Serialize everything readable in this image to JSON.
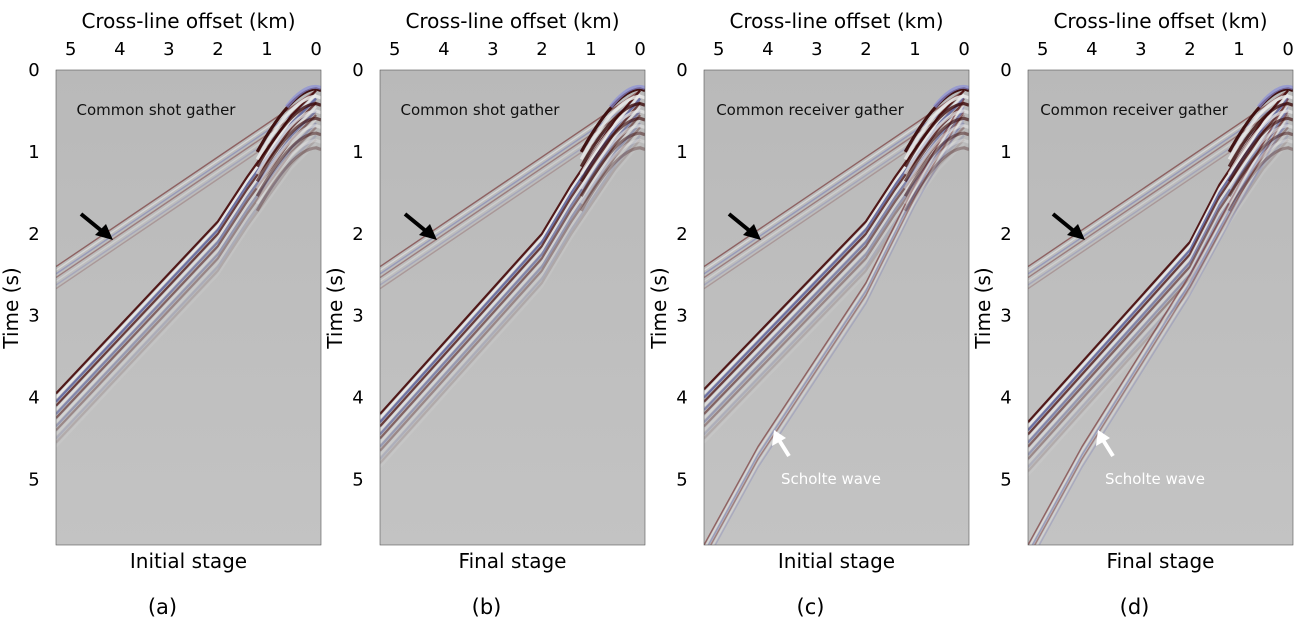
{
  "figure": {
    "panels": [
      {
        "id": "a",
        "panel_label": "(a)",
        "stage": "Initial stage",
        "gather": "Common shot gather",
        "scholte_label": "",
        "has_scholte": false
      },
      {
        "id": "b",
        "panel_label": "(b)",
        "stage": "Final stage",
        "gather": "Common shot gather",
        "scholte_label": "",
        "has_scholte": false
      },
      {
        "id": "c",
        "panel_label": "(c)",
        "stage": "Initial stage",
        "gather": "Common receiver gather",
        "scholte_label": "Scholte wave",
        "has_scholte": true
      },
      {
        "id": "d",
        "panel_label": "(d)",
        "stage": "Final stage",
        "gather": "Common receiver gather",
        "scholte_label": "Scholte wave",
        "has_scholte": true
      }
    ]
  },
  "chart_data": [
    {
      "type": "heatmap",
      "title": "",
      "xlabel": "Cross-line offset (km)",
      "ylabel": "Time (s)",
      "x_ticks": [
        5,
        4,
        3,
        2,
        1,
        0
      ],
      "y_ticks": [
        0,
        1,
        2,
        3,
        4,
        5
      ],
      "xlim": [
        5.3,
        -0.1
      ],
      "ylim": [
        0,
        5.8
      ],
      "x_reversed": true,
      "y_reversed": true,
      "annotations": [
        "Common shot gather"
      ],
      "xlabel_bottom": "Initial stage",
      "panel_label": "(a)",
      "events": [
        {
          "kind": "direct",
          "x": [
            5.3,
            0.0
          ],
          "t": [
            2.4,
            0.25
          ]
        },
        {
          "kind": "refraction",
          "x": [
            5.3,
            2.0,
            1.4,
            0.5,
            0.0
          ],
          "t": [
            3.95,
            1.85,
            1.3,
            0.55,
            0.25
          ]
        }
      ]
    },
    {
      "type": "heatmap",
      "title": "",
      "xlabel": "Cross-line offset (km)",
      "ylabel": "Time (s)",
      "x_ticks": [
        5,
        4,
        3,
        2,
        1,
        0
      ],
      "y_ticks": [
        0,
        1,
        2,
        3,
        4,
        5
      ],
      "xlim": [
        5.3,
        -0.1
      ],
      "ylim": [
        0,
        5.8
      ],
      "x_reversed": true,
      "y_reversed": true,
      "annotations": [
        "Common shot gather"
      ],
      "xlabel_bottom": "Final stage",
      "panel_label": "(b)",
      "events": [
        {
          "kind": "direct",
          "x": [
            5.3,
            0.0
          ],
          "t": [
            2.4,
            0.25
          ]
        },
        {
          "kind": "refraction",
          "x": [
            5.3,
            2.0,
            1.4,
            0.5,
            0.0
          ],
          "t": [
            4.2,
            2.0,
            1.4,
            0.6,
            0.25
          ]
        }
      ]
    },
    {
      "type": "heatmap",
      "title": "",
      "xlabel": "Cross-line offset (km)",
      "ylabel": "Time (s)",
      "x_ticks": [
        5,
        4,
        3,
        2,
        1,
        0
      ],
      "y_ticks": [
        0,
        1,
        2,
        3,
        4,
        5
      ],
      "xlim": [
        5.3,
        -0.1
      ],
      "ylim": [
        0,
        5.8
      ],
      "x_reversed": true,
      "y_reversed": true,
      "annotations": [
        "Common receiver gather",
        "Scholte wave"
      ],
      "xlabel_bottom": "Initial stage",
      "panel_label": "(c)",
      "events": [
        {
          "kind": "direct",
          "x": [
            5.3,
            0.0
          ],
          "t": [
            2.4,
            0.25
          ]
        },
        {
          "kind": "refraction",
          "x": [
            5.3,
            2.0,
            1.4,
            0.5,
            0.0
          ],
          "t": [
            3.9,
            1.85,
            1.3,
            0.55,
            0.25
          ]
        },
        {
          "kind": "scholte",
          "x": [
            5.3,
            4.2,
            2.0,
            1.0,
            0.0
          ],
          "t": [
            5.8,
            4.6,
            2.6,
            1.4,
            0.35
          ]
        }
      ]
    },
    {
      "type": "heatmap",
      "title": "",
      "xlabel": "Cross-line offset (km)",
      "ylabel": "Time (s)",
      "x_ticks": [
        5,
        4,
        3,
        2,
        1,
        0
      ],
      "y_ticks": [
        0,
        1,
        2,
        3,
        4,
        5
      ],
      "xlim": [
        5.3,
        -0.1
      ],
      "ylim": [
        0,
        5.8
      ],
      "x_reversed": true,
      "y_reversed": true,
      "annotations": [
        "Common receiver gather",
        "Scholte wave"
      ],
      "xlabel_bottom": "Final stage",
      "panel_label": "(d)",
      "events": [
        {
          "kind": "direct",
          "x": [
            5.3,
            0.0
          ],
          "t": [
            2.4,
            0.25
          ]
        },
        {
          "kind": "refraction",
          "x": [
            5.3,
            2.0,
            1.4,
            0.5,
            0.0
          ],
          "t": [
            4.3,
            2.1,
            1.4,
            0.6,
            0.25
          ]
        },
        {
          "kind": "scholte",
          "x": [
            5.3,
            4.2,
            2.0,
            1.0,
            0.0
          ],
          "t": [
            5.8,
            4.6,
            2.5,
            1.4,
            0.35
          ]
        }
      ]
    }
  ]
}
